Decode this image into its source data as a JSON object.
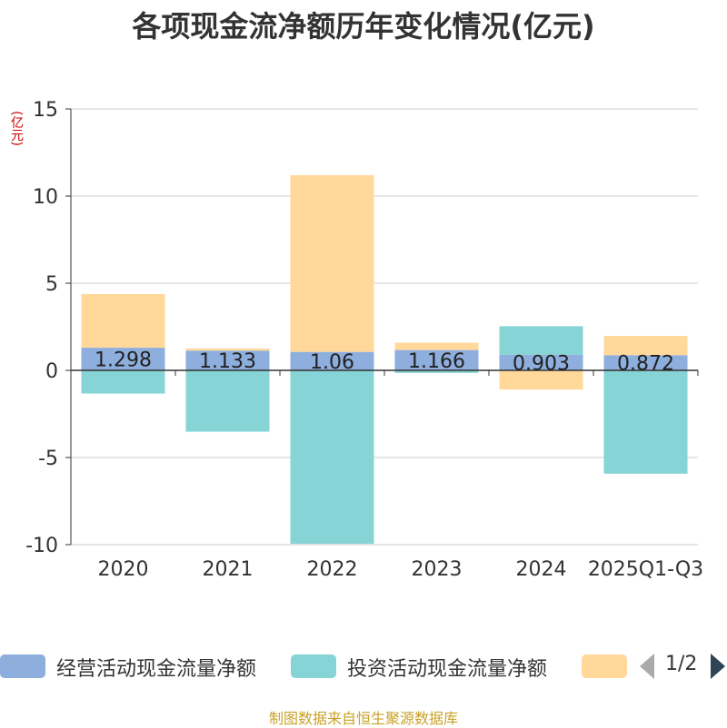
{
  "title": "各项现金流净额历年变化情况(亿元)",
  "unit_label": "(亿元)",
  "source": "制图数据来自恒生聚源数据库",
  "legend": {
    "items": [
      {
        "label": "经营活动现金流量净额",
        "color": "#8eaedd"
      },
      {
        "label": "投资活动现金流量净额",
        "color": "#86d4d6"
      },
      {
        "label": "",
        "color": "#ffd89a"
      }
    ],
    "page": "1/2"
  },
  "chart_data": {
    "type": "bar",
    "stacked": true,
    "categories": [
      "2020",
      "2021",
      "2022",
      "2023",
      "2024",
      "2025Q1-Q3"
    ],
    "ylim": [
      -10,
      15
    ],
    "yticks": [
      -10,
      -5,
      0,
      5,
      10,
      15
    ],
    "grid": true,
    "series": [
      {
        "name": "经营活动现金流量净额",
        "color": "#8eaedd",
        "values": [
          1.298,
          1.133,
          1.06,
          1.166,
          0.903,
          0.872
        ],
        "labels": [
          "1.298",
          "1.133",
          "1.06",
          "1.166",
          "0.903",
          "0.872"
        ]
      },
      {
        "name": "投资活动现金流量净额",
        "color": "#86d4d6",
        "values": [
          -1.33,
          -3.52,
          -9.95,
          -0.15,
          1.63,
          -5.93
        ]
      },
      {
        "name": "",
        "color": "#ffd89a",
        "values": [
          3.08,
          0.12,
          10.14,
          0.42,
          -1.1,
          1.1
        ]
      }
    ]
  }
}
